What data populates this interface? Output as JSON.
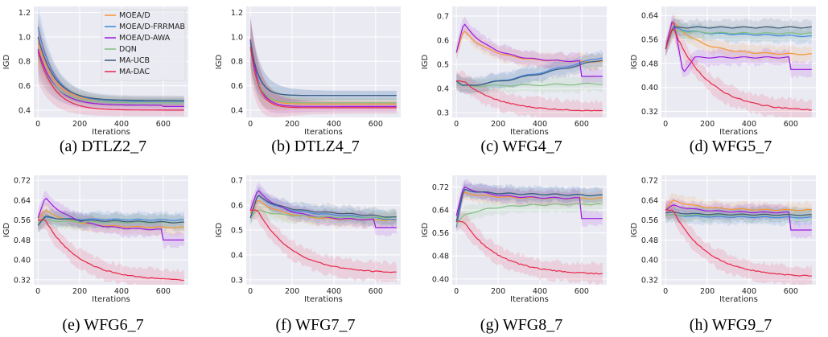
{
  "figure": {
    "legend": [
      {
        "name": "MOEA/D",
        "color": "#f5962f"
      },
      {
        "name": "MOEA/D-FRRMAB",
        "color": "#3f86e0"
      },
      {
        "name": "MOEA/D-AWA",
        "color": "#9a1be0"
      },
      {
        "name": "DQN",
        "color": "#7fbf7f"
      },
      {
        "name": "MA-UCB",
        "color": "#3c5a78"
      },
      {
        "name": "MA-DAC",
        "color": "#e8274b"
      }
    ],
    "background": "#eaeaf2"
  },
  "chart_data": [
    {
      "type": "line",
      "caption": "(a) DTLZ2_7",
      "xlabel": "Iterations",
      "ylabel": "IGD",
      "xlim": [
        -20,
        720
      ],
      "ylim": [
        0.34,
        1.25
      ],
      "xticks": [
        0,
        200,
        400,
        600
      ],
      "xticklabels": [
        "0",
        "200",
        "400",
        "600"
      ],
      "yticks": [
        0.4,
        0.6,
        0.8,
        1.0,
        1.2
      ],
      "yticklabels": [
        "0.4",
        "0.6",
        "0.8",
        "1.0",
        "1.2"
      ],
      "shape": "decay",
      "legend": true,
      "series": [
        {
          "name": "MOEA/D",
          "start": 0.95,
          "end": 0.47
        },
        {
          "name": "MOEA/D-FRRMAB",
          "start": 1.08,
          "end": 0.47
        },
        {
          "name": "MOEA/D-AWA",
          "start": 0.9,
          "end": 0.44,
          "drop_at": 600,
          "drop_to": 0.43
        },
        {
          "name": "DQN",
          "start": 0.85,
          "end": 0.46
        },
        {
          "name": "MA-UCB",
          "start": 1.0,
          "end": 0.48
        },
        {
          "name": "MA-DAC",
          "start": 0.88,
          "end": 0.4
        }
      ]
    },
    {
      "type": "line",
      "caption": "(b) DTLZ4_7",
      "xlabel": "Iterations",
      "ylabel": "IGD",
      "xlim": [
        -20,
        720
      ],
      "ylim": [
        0.34,
        1.25
      ],
      "xticks": [
        0,
        200,
        400,
        600
      ],
      "xticklabels": [
        "0",
        "200",
        "400",
        "600"
      ],
      "yticks": [
        0.4,
        0.6,
        0.8,
        1.0,
        1.2
      ],
      "yticklabels": [
        "0.4",
        "0.6",
        "0.8",
        "1.0",
        "1.2"
      ],
      "shape": "decay_fast",
      "legend": false,
      "series": [
        {
          "name": "MOEA/D",
          "start": 0.95,
          "end": 0.45
        },
        {
          "name": "MOEA/D-FRRMAB",
          "start": 0.95,
          "end": 0.52
        },
        {
          "name": "MOEA/D-AWA",
          "start": 0.98,
          "end": 0.43
        },
        {
          "name": "DQN",
          "start": 0.9,
          "end": 0.46
        },
        {
          "name": "MA-UCB",
          "start": 0.97,
          "end": 0.52
        },
        {
          "name": "MA-DAC",
          "start": 0.92,
          "end": 0.42
        }
      ]
    },
    {
      "type": "line",
      "caption": "(c) WFG4_7",
      "xlabel": "Iterations",
      "ylabel": "IGD",
      "xlim": [
        -20,
        720
      ],
      "ylim": [
        0.28,
        0.74
      ],
      "xticks": [
        0,
        200,
        400,
        600
      ],
      "xticklabels": [
        "0",
        "200",
        "400",
        "600"
      ],
      "yticks": [
        0.3,
        0.4,
        0.5,
        0.6,
        0.7
      ],
      "yticklabels": [
        "0.3",
        "0.4",
        "0.5",
        "0.6",
        "0.7"
      ],
      "shape": "mixed",
      "legend": false,
      "series": [
        {
          "name": "MOEA/D",
          "start": 0.55,
          "peak": 0.64,
          "end": 0.51
        },
        {
          "name": "MOEA/D-FRRMAB",
          "start": 0.43,
          "dip": 0.41,
          "end": 0.53,
          "rise": true
        },
        {
          "name": "MOEA/D-AWA",
          "start": 0.55,
          "peak": 0.67,
          "end": 0.51,
          "drop_at": 600,
          "drop_to": 0.45
        },
        {
          "name": "DQN",
          "start": 0.42,
          "dip": 0.41,
          "end": 0.42,
          "rise": true
        },
        {
          "name": "MA-UCB",
          "start": 0.43,
          "dip": 0.41,
          "end": 0.52,
          "rise": true
        },
        {
          "name": "MA-DAC",
          "start": 0.43,
          "end": 0.305
        }
      ]
    },
    {
      "type": "line",
      "caption": "(d) WFG5_7",
      "xlabel": "Iterations",
      "ylabel": "IGD",
      "xlim": [
        -20,
        720
      ],
      "ylim": [
        0.3,
        0.67
      ],
      "xticks": [
        0,
        200,
        400,
        600
      ],
      "xticklabels": [
        "0",
        "200",
        "400",
        "600"
      ],
      "yticks": [
        0.32,
        0.4,
        0.48,
        0.56,
        0.64
      ],
      "yticklabels": [
        "0.32",
        "0.40",
        "0.48",
        "0.56",
        "0.64"
      ],
      "shape": "mixed",
      "legend": false,
      "series": [
        {
          "name": "MOEA/D",
          "start": 0.53,
          "peak": 0.62,
          "end": 0.51
        },
        {
          "name": "MOEA/D-FRRMAB",
          "start": 0.53,
          "peak": 0.6,
          "end": 0.57
        },
        {
          "name": "MOEA/D-AWA",
          "start": 0.53,
          "peak": 0.63,
          "valley": 0.45,
          "end": 0.5,
          "drop_at": 600,
          "drop_to": 0.46
        },
        {
          "name": "DQN",
          "start": 0.53,
          "peak": 0.59,
          "end": 0.58
        },
        {
          "name": "MA-UCB",
          "start": 0.53,
          "peak": 0.6,
          "end": 0.6
        },
        {
          "name": "MA-DAC",
          "start": 0.53,
          "peak": 0.6,
          "end": 0.32
        }
      ]
    },
    {
      "type": "line",
      "caption": "(e) WFG6_7",
      "xlabel": "Iterations",
      "ylabel": "IGD",
      "xlim": [
        -20,
        720
      ],
      "ylim": [
        0.3,
        0.74
      ],
      "xticks": [
        0,
        200,
        400,
        600
      ],
      "xticklabels": [
        "0",
        "200",
        "400",
        "600"
      ],
      "yticks": [
        0.32,
        0.4,
        0.48,
        0.56,
        0.64,
        0.72
      ],
      "yticklabels": [
        "0.32",
        "0.40",
        "0.48",
        "0.56",
        "0.64",
        "0.72"
      ],
      "shape": "mixed",
      "legend": false,
      "series": [
        {
          "name": "MOEA/D",
          "start": 0.56,
          "peak": 0.6,
          "end": 0.53
        },
        {
          "name": "MOEA/D-FRRMAB",
          "start": 0.54,
          "peak": 0.57,
          "end": 0.56
        },
        {
          "name": "MOEA/D-AWA",
          "start": 0.57,
          "peak": 0.65,
          "end": 0.52,
          "drop_at": 600,
          "drop_to": 0.48
        },
        {
          "name": "DQN",
          "start": 0.55,
          "peak": 0.56,
          "end": 0.55
        },
        {
          "name": "MA-UCB",
          "start": 0.54,
          "peak": 0.575,
          "end": 0.55
        },
        {
          "name": "MA-DAC",
          "start": 0.56,
          "end": 0.315
        }
      ]
    },
    {
      "type": "line",
      "caption": "(f) WFG7_7",
      "xlabel": "Iterations",
      "ylabel": "IGD",
      "xlim": [
        -20,
        720
      ],
      "ylim": [
        0.28,
        0.72
      ],
      "xticks": [
        0,
        200,
        400,
        600
      ],
      "xticklabels": [
        "0",
        "200",
        "400",
        "600"
      ],
      "yticks": [
        0.3,
        0.4,
        0.5,
        0.6,
        0.7
      ],
      "yticklabels": [
        "0.3",
        "0.4",
        "0.5",
        "0.6",
        "0.7"
      ],
      "shape": "mixed",
      "legend": false,
      "series": [
        {
          "name": "MOEA/D",
          "start": 0.57,
          "peak": 0.62,
          "end": 0.54
        },
        {
          "name": "MOEA/D-FRRMAB",
          "start": 0.55,
          "peak": 0.64,
          "end": 0.54
        },
        {
          "name": "MOEA/D-AWA",
          "start": 0.58,
          "peak": 0.66,
          "end": 0.54,
          "drop_at": 600,
          "drop_to": 0.51
        },
        {
          "name": "DQN",
          "start": 0.55,
          "peak": 0.58,
          "end": 0.55
        },
        {
          "name": "MA-UCB",
          "start": 0.55,
          "peak": 0.64,
          "end": 0.55
        },
        {
          "name": "MA-DAC",
          "start": 0.58,
          "end": 0.325
        }
      ]
    },
    {
      "type": "line",
      "caption": "(g) WFG8_7",
      "xlabel": "Iterations",
      "ylabel": "IGD",
      "xlim": [
        -20,
        720
      ],
      "ylim": [
        0.38,
        0.76
      ],
      "xticks": [
        0,
        200,
        400,
        600
      ],
      "xticklabels": [
        "0",
        "200",
        "400",
        "600"
      ],
      "yticks": [
        0.4,
        0.48,
        0.56,
        0.64,
        0.72
      ],
      "yticklabels": [
        "0.40",
        "0.48",
        "0.56",
        "0.64",
        "0.72"
      ],
      "shape": "mixed",
      "legend": false,
      "series": [
        {
          "name": "MOEA/D",
          "start": 0.6,
          "peak": 0.7,
          "end": 0.68
        },
        {
          "name": "MOEA/D-FRRMAB",
          "start": 0.58,
          "peak": 0.71,
          "end": 0.69
        },
        {
          "name": "MOEA/D-AWA",
          "start": 0.62,
          "peak": 0.72,
          "end": 0.68,
          "drop_at": 600,
          "drop_to": 0.61
        },
        {
          "name": "DQN",
          "start": 0.59,
          "peak": 0.62,
          "end": 0.66
        },
        {
          "name": "MA-UCB",
          "start": 0.6,
          "peak": 0.71,
          "end": 0.69
        },
        {
          "name": "MA-DAC",
          "start": 0.6,
          "end": 0.415
        }
      ]
    },
    {
      "type": "line",
      "caption": "(h) WFG9_7",
      "xlabel": "Iterations",
      "ylabel": "IGD",
      "xlim": [
        -20,
        720
      ],
      "ylim": [
        0.3,
        0.74
      ],
      "xticks": [
        0,
        200,
        400,
        600
      ],
      "xticklabels": [
        "0",
        "200",
        "400",
        "600"
      ],
      "yticks": [
        0.32,
        0.4,
        0.48,
        0.56,
        0.64,
        0.72
      ],
      "yticklabels": [
        "0.32",
        "0.40",
        "0.48",
        "0.56",
        "0.64",
        "0.72"
      ],
      "shape": "mixed",
      "legend": false,
      "series": [
        {
          "name": "MOEA/D",
          "start": 0.6,
          "peak": 0.64,
          "end": 0.6
        },
        {
          "name": "MOEA/D-FRRMAB",
          "start": 0.58,
          "peak": 0.58,
          "end": 0.57
        },
        {
          "name": "MOEA/D-AWA",
          "start": 0.6,
          "peak": 0.62,
          "end": 0.59,
          "drop_at": 600,
          "drop_to": 0.52
        },
        {
          "name": "DQN",
          "start": 0.58,
          "peak": 0.58,
          "end": 0.58
        },
        {
          "name": "MA-UCB",
          "start": 0.59,
          "peak": 0.59,
          "end": 0.58
        },
        {
          "name": "MA-DAC",
          "start": 0.6,
          "end": 0.33
        }
      ]
    }
  ]
}
